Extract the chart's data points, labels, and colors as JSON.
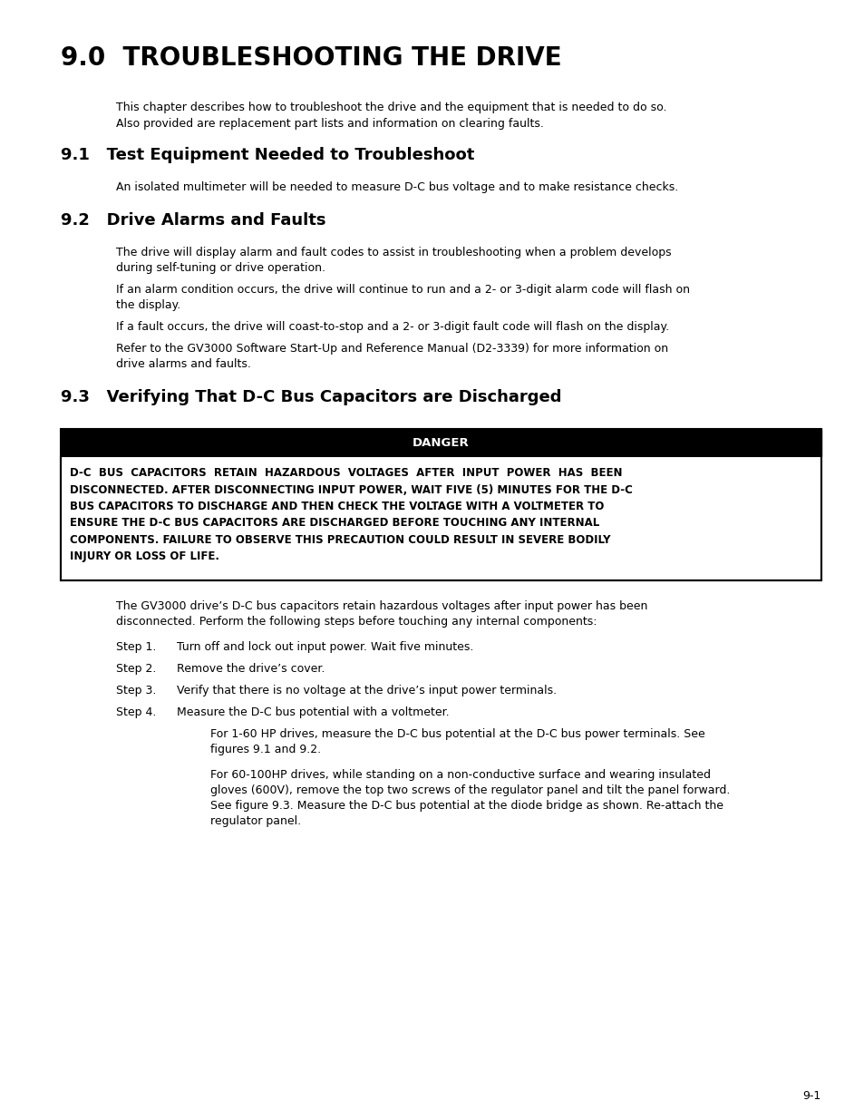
{
  "bg_color": "#ffffff",
  "page_number": "9-1",
  "main_title": "9.0  TROUBLESHOOTING THE DRIVE",
  "intro_line1": "This chapter describes how to troubleshoot the drive and the equipment that is needed to do so.",
  "intro_line2": "Also provided are replacement part lists and information on clearing faults.",
  "section_91_title": "9.1   Test Equipment Needed to Troubleshoot",
  "section_91_text": "An isolated multimeter will be needed to measure D-C bus voltage and to make resistance checks.",
  "section_92_title": "9.2   Drive Alarms and Faults",
  "section_92_para1_l1": "The drive will display alarm and fault codes to assist in troubleshooting when a problem develops",
  "section_92_para1_l2": "during self-tuning or drive operation.",
  "section_92_para2_l1": "If an alarm condition occurs, the drive will continue to run and a 2- or 3-digit alarm code will flash on",
  "section_92_para2_l2": "the display.",
  "section_92_para3": "If a fault occurs, the drive will coast-to-stop and a 2- or 3-digit fault code will flash on the display.",
  "section_92_para4_l1": "Refer to the GV3000 Software Start-Up and Reference Manual (D2-3339) for more information on",
  "section_92_para4_l2": "drive alarms and faults.",
  "section_93_title": "9.3   Verifying That D-C Bus Capacitors are Discharged",
  "danger_header": "DANGER",
  "danger_body_lines": [
    "D-C  BUS  CAPACITORS  RETAIN  HAZARDOUS  VOLTAGES  AFTER  INPUT  POWER  HAS  BEEN",
    "DISCONNECTED. AFTER DISCONNECTING INPUT POWER, WAIT FIVE (5) MINUTES FOR THE D-C",
    "BUS CAPACITORS TO DISCHARGE AND THEN CHECK THE VOLTAGE WITH A VOLTMETER TO",
    "ENSURE THE D-C BUS CAPACITORS ARE DISCHARGED BEFORE TOUCHING ANY INTERNAL",
    "COMPONENTS. FAILURE TO OBSERVE THIS PRECAUTION COULD RESULT IN SEVERE BODILY",
    "INJURY OR LOSS OF LIFE."
  ],
  "after_danger_l1": "The GV3000 drive’s D-C bus capacitors retain hazardous voltages after input power has been",
  "after_danger_l2": "disconnected. Perform the following steps before touching any internal components:",
  "step1_label": "Step 1.",
  "step1_text": "Turn off and lock out input power. Wait five minutes.",
  "step2_label": "Step 2.",
  "step2_text": "Remove the drive’s cover.",
  "step3_label": "Step 3.",
  "step3_text": "Verify that there is no voltage at the drive’s input power terminals.",
  "step4_label": "Step 4.",
  "step4_text": "Measure the D-C bus potential with a voltmeter.",
  "step4a_l1": "For 1-60 HP drives, measure the D-C bus potential at the D-C bus power terminals. See",
  "step4a_l2": "figures 9.1 and 9.2.",
  "step4b_l1": "For 60-100HP drives, while standing on a non-conductive surface and wearing insulated",
  "step4b_l2": "gloves (600V), remove the top two screws of the regulator panel and tilt the panel forward.",
  "step4b_l3": "See figure 9.3. Measure the D-C bus potential at the diode bridge as shown. Re-attach the",
  "step4b_l4": "regulator panel.",
  "main_title_fontsize": 20,
  "section_title_fontsize": 13,
  "body_fontsize": 9,
  "danger_body_fontsize": 8.5,
  "page_num_fontsize": 9
}
